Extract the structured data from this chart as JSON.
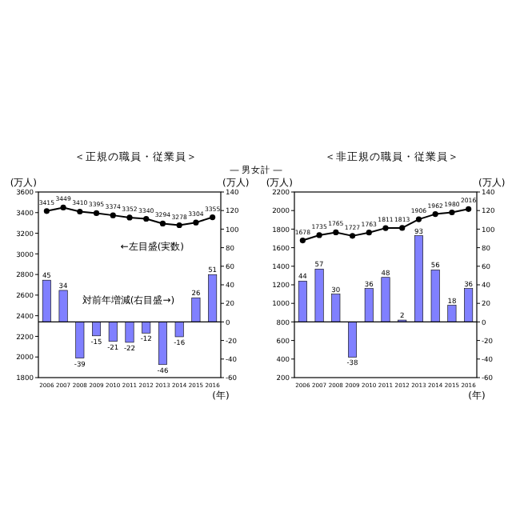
{
  "chart_data": [
    {
      "type": "bar",
      "title": "＜正規の職員・従業員＞",
      "subtitle": "― 男女計 ―",
      "xlabel": "(年)",
      "ylabel": "(万人)",
      "y2label": "(万人)",
      "categories": [
        "2006",
        "2007",
        "2008",
        "2009",
        "2010",
        "2011",
        "2012",
        "2013",
        "2014",
        "2015",
        "2016"
      ],
      "ylim": [
        1800,
        3600
      ],
      "yticks": [
        1800,
        2000,
        2200,
        2400,
        2600,
        2800,
        3000,
        3200,
        3400,
        3600
      ],
      "y2lim": [
        -60,
        140
      ],
      "y2ticks": [
        -60,
        -40,
        -20,
        0,
        20,
        40,
        60,
        80,
        100,
        120,
        140
      ],
      "marker": "circle",
      "data_labels": true,
      "annotations": [
        "←左目盛(実数)",
        "対前年増減(右目盛→)"
      ],
      "series": [
        {
          "type": "line",
          "color": "#000000",
          "values": [
            3415,
            3449,
            3410,
            3395,
            3374,
            3352,
            3340,
            3294,
            3278,
            3304,
            3355
          ]
        },
        {
          "axis": "y2",
          "color": "#8080ff",
          "values": [
            45,
            34,
            -39,
            -15,
            -21,
            -22,
            -12,
            -46,
            -16,
            26,
            51
          ]
        }
      ]
    },
    {
      "type": "bar",
      "title": "＜非正規の職員・従業員＞",
      "xlabel": "(年)",
      "ylabel": "(万人)",
      "y2label": "(万人)",
      "categories": [
        "2006",
        "2007",
        "2008",
        "2009",
        "2010",
        "2011",
        "2012",
        "2013",
        "2014",
        "2015",
        "2016"
      ],
      "ylim": [
        200,
        2200
      ],
      "yticks": [
        200,
        400,
        600,
        800,
        1000,
        1200,
        1400,
        1600,
        1800,
        2000,
        2200
      ],
      "y2lim": [
        -60,
        140
      ],
      "y2ticks": [
        -60,
        -40,
        -20,
        0,
        20,
        40,
        60,
        80,
        100,
        120,
        140
      ],
      "marker": "circle",
      "data_labels": true,
      "series": [
        {
          "type": "line",
          "color": "#000000",
          "values": [
            1678,
            1735,
            1765,
            1727,
            1763,
            1811,
            1813,
            1906,
            1962,
            1980,
            2016
          ]
        },
        {
          "axis": "y2",
          "color": "#8080ff",
          "values": [
            44,
            57,
            30,
            -38,
            36,
            48,
            2,
            93,
            56,
            18,
            36
          ]
        }
      ]
    }
  ]
}
